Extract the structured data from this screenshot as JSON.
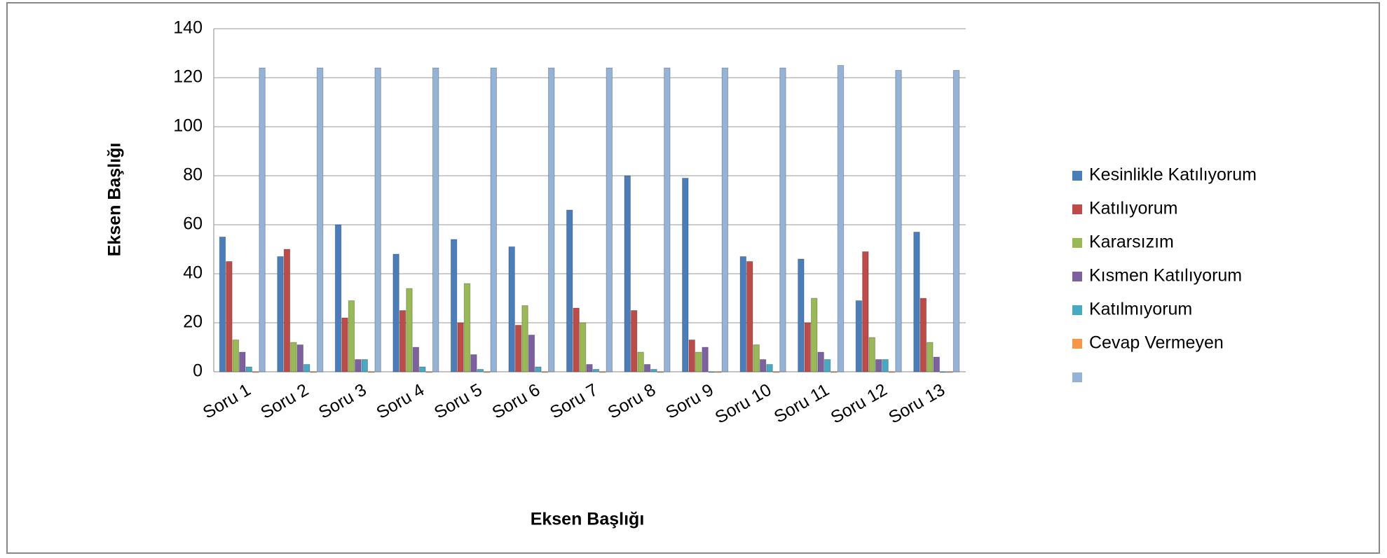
{
  "chart_data": {
    "type": "bar",
    "x_label": "Eksen Başlığı",
    "y_label": "Eksen Başlığı",
    "categories": [
      "Soru 1",
      "Soru 2",
      "Soru 3",
      "Soru 4",
      "Soru 5",
      "Soru 6",
      "Soru 7",
      "Soru 8",
      "Soru 9",
      "Soru 10",
      "Soru 11",
      "Soru 12",
      "Soru 13"
    ],
    "series": [
      {
        "name": "Kesinlikle Katılıyorum",
        "color": "#4a7ebb",
        "values": [
          55,
          47,
          60,
          48,
          54,
          51,
          66,
          80,
          79,
          47,
          46,
          29,
          57
        ]
      },
      {
        "name": "Katılıyorum",
        "color": "#be4b48",
        "values": [
          45,
          50,
          22,
          25,
          20,
          19,
          26,
          25,
          13,
          45,
          20,
          49,
          30
        ]
      },
      {
        "name": "Kararsızım",
        "color": "#98b954",
        "values": [
          13,
          12,
          29,
          34,
          36,
          27,
          20,
          8,
          8,
          11,
          30,
          14,
          12
        ]
      },
      {
        "name": "Kısmen Katılıyorum",
        "color": "#7d60a0",
        "values": [
          8,
          11,
          5,
          10,
          7,
          15,
          3,
          3,
          10,
          5,
          8,
          5,
          6
        ]
      },
      {
        "name": "Katılmıyorum",
        "color": "#46aac5",
        "values": [
          2,
          3,
          5,
          2,
          1,
          2,
          1,
          1,
          0,
          3,
          5,
          5,
          0
        ]
      },
      {
        "name": "Cevap Vermeyen",
        "color": "#f79646",
        "values": [
          0,
          0,
          0,
          0,
          0,
          0,
          0,
          0,
          0,
          0,
          0,
          0,
          0
        ]
      },
      {
        "color": "#95b3d7",
        "values": [
          124,
          124,
          124,
          124,
          124,
          124,
          124,
          124,
          124,
          124,
          125,
          123,
          123
        ]
      }
    ],
    "ylim": [
      0,
      140
    ],
    "yticks": [
      0,
      20,
      40,
      60,
      80,
      100,
      120,
      140
    ],
    "grid": true,
    "legend": "right"
  }
}
